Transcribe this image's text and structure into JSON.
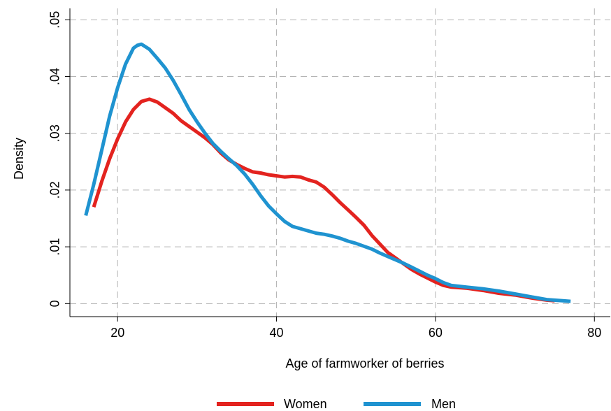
{
  "chart_data": {
    "type": "line",
    "title": "",
    "xlabel": "Age of farmworker of berries",
    "ylabel": "Density",
    "xlim": [
      14,
      82
    ],
    "ylim": [
      -0.0023,
      0.052
    ],
    "xticks": [
      20,
      40,
      60,
      80
    ],
    "xtick_labels": [
      "20",
      "40",
      "60",
      "80"
    ],
    "yticks": [
      0,
      0.01,
      0.02,
      0.03,
      0.04,
      0.05
    ],
    "ytick_labels": [
      "0",
      ".01",
      ".02",
      ".03",
      ".04",
      ".05"
    ],
    "grid": true,
    "legend_position": "bottom",
    "colors": {
      "women": "#e3231f",
      "men": "#1f93d0",
      "grid": "#b3b3b3"
    },
    "series": [
      {
        "name": "Women",
        "color": "#e3231f",
        "points": [
          [
            17,
            0.017
          ],
          [
            18,
            0.0215
          ],
          [
            19,
            0.0255
          ],
          [
            20,
            0.029
          ],
          [
            21,
            0.032
          ],
          [
            22,
            0.0342
          ],
          [
            23,
            0.0356
          ],
          [
            24,
            0.036
          ],
          [
            25,
            0.0355
          ],
          [
            26,
            0.0345
          ],
          [
            27,
            0.0335
          ],
          [
            28,
            0.0322
          ],
          [
            29,
            0.0312
          ],
          [
            30,
            0.0302
          ],
          [
            31,
            0.0292
          ],
          [
            32,
            0.028
          ],
          [
            33,
            0.0265
          ],
          [
            34,
            0.0253
          ],
          [
            35,
            0.0245
          ],
          [
            36,
            0.0238
          ],
          [
            37,
            0.0232
          ],
          [
            38,
            0.023
          ],
          [
            39,
            0.0227
          ],
          [
            40,
            0.0225
          ],
          [
            41,
            0.0223
          ],
          [
            42,
            0.0224
          ],
          [
            43,
            0.0223
          ],
          [
            44,
            0.0218
          ],
          [
            45,
            0.0214
          ],
          [
            46,
            0.0205
          ],
          [
            47,
            0.0192
          ],
          [
            48,
            0.0178
          ],
          [
            49,
            0.0165
          ],
          [
            50,
            0.0152
          ],
          [
            51,
            0.0138
          ],
          [
            52,
            0.012
          ],
          [
            53,
            0.0105
          ],
          [
            54,
            0.009
          ],
          [
            55,
            0.008
          ],
          [
            56,
            0.007
          ],
          [
            57,
            0.006
          ],
          [
            58,
            0.0052
          ],
          [
            59,
            0.0045
          ],
          [
            60,
            0.0038
          ],
          [
            61,
            0.0032
          ],
          [
            62,
            0.0029
          ],
          [
            64,
            0.0027
          ],
          [
            66,
            0.0023
          ],
          [
            68,
            0.0018
          ],
          [
            70,
            0.0015
          ],
          [
            72,
            0.001
          ],
          [
            74,
            0.0006
          ],
          [
            75,
            0.0005
          ]
        ]
      },
      {
        "name": "Men",
        "color": "#1f93d0",
        "points": [
          [
            16,
            0.0155
          ],
          [
            17,
            0.021
          ],
          [
            18,
            0.027
          ],
          [
            19,
            0.033
          ],
          [
            20,
            0.038
          ],
          [
            21,
            0.0422
          ],
          [
            22,
            0.045
          ],
          [
            22.5,
            0.0455
          ],
          [
            23,
            0.0457
          ],
          [
            24,
            0.0448
          ],
          [
            25,
            0.0432
          ],
          [
            26,
            0.0415
          ],
          [
            27,
            0.0393
          ],
          [
            28,
            0.0368
          ],
          [
            29,
            0.0342
          ],
          [
            30,
            0.032
          ],
          [
            31,
            0.03
          ],
          [
            32,
            0.0282
          ],
          [
            33,
            0.0268
          ],
          [
            34,
            0.0255
          ],
          [
            35,
            0.0243
          ],
          [
            36,
            0.0228
          ],
          [
            37,
            0.021
          ],
          [
            38,
            0.019
          ],
          [
            39,
            0.0172
          ],
          [
            40,
            0.0158
          ],
          [
            41,
            0.0145
          ],
          [
            42,
            0.0136
          ],
          [
            43,
            0.0132
          ],
          [
            44,
            0.0128
          ],
          [
            45,
            0.0124
          ],
          [
            46,
            0.0122
          ],
          [
            47,
            0.0119
          ],
          [
            48,
            0.0115
          ],
          [
            49,
            0.011
          ],
          [
            50,
            0.0106
          ],
          [
            51,
            0.0101
          ],
          [
            52,
            0.0096
          ],
          [
            53,
            0.0089
          ],
          [
            54,
            0.0083
          ],
          [
            55,
            0.0077
          ],
          [
            56,
            0.0071
          ],
          [
            57,
            0.0064
          ],
          [
            58,
            0.0057
          ],
          [
            59,
            0.005
          ],
          [
            60,
            0.0044
          ],
          [
            61,
            0.0037
          ],
          [
            62,
            0.0032
          ],
          [
            64,
            0.0029
          ],
          [
            66,
            0.0026
          ],
          [
            68,
            0.0022
          ],
          [
            70,
            0.0017
          ],
          [
            72,
            0.0012
          ],
          [
            74,
            0.0007
          ],
          [
            76,
            0.0005
          ],
          [
            77,
            0.0004
          ]
        ]
      }
    ]
  }
}
